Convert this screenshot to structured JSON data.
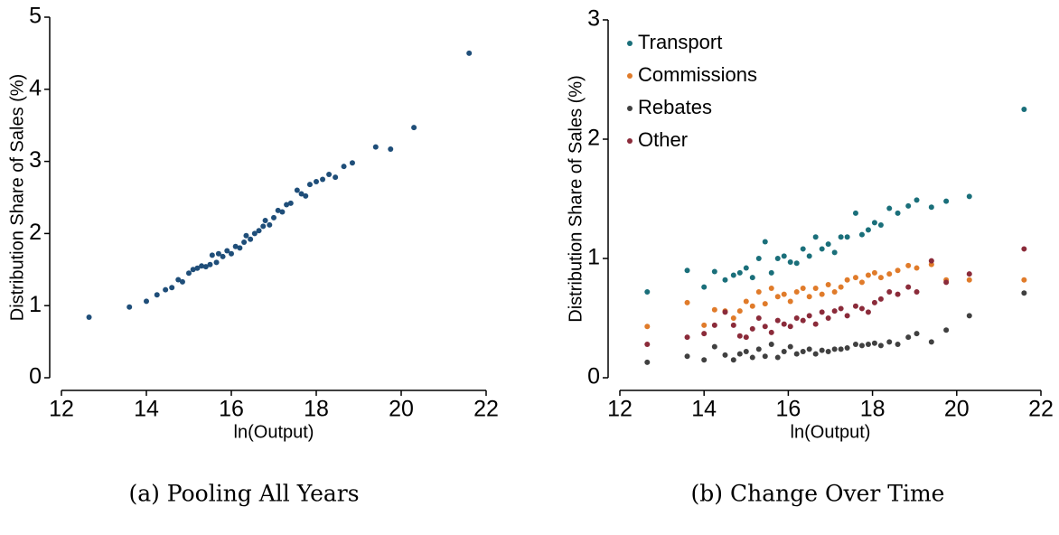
{
  "chart_data": [
    {
      "type": "scatter",
      "caption": "(a) Pooling All Years",
      "xlabel": "ln(Output)",
      "ylabel": "Distribution Share of Sales (%)",
      "color": "#1f4e79",
      "xlim": [
        12,
        22
      ],
      "xticks": [
        12,
        14,
        16,
        18,
        20,
        22
      ],
      "ylim": [
        0,
        5
      ],
      "yticks": [
        0,
        1,
        2,
        3,
        4,
        5
      ],
      "x": [
        12.65,
        13.6,
        14.0,
        14.25,
        14.45,
        14.6,
        14.75,
        14.85,
        15.0,
        15.1,
        15.2,
        15.3,
        15.4,
        15.5,
        15.55,
        15.65,
        15.7,
        15.8,
        15.9,
        16.0,
        16.1,
        16.2,
        16.3,
        16.35,
        16.45,
        16.55,
        16.65,
        16.75,
        16.8,
        16.9,
        17.0,
        17.1,
        17.2,
        17.3,
        17.4,
        17.55,
        17.65,
        17.75,
        17.85,
        18.0,
        18.15,
        18.3,
        18.45,
        18.65,
        18.85,
        19.4,
        19.75,
        20.3,
        21.6
      ],
      "values": [
        0.84,
        0.98,
        1.06,
        1.15,
        1.22,
        1.25,
        1.36,
        1.33,
        1.45,
        1.5,
        1.52,
        1.55,
        1.54,
        1.57,
        1.7,
        1.6,
        1.72,
        1.68,
        1.76,
        1.72,
        1.82,
        1.8,
        1.88,
        1.97,
        1.92,
        2.0,
        2.04,
        2.1,
        2.18,
        2.12,
        2.22,
        2.32,
        2.3,
        2.4,
        2.42,
        2.6,
        2.55,
        2.52,
        2.68,
        2.72,
        2.75,
        2.82,
        2.78,
        2.93,
        2.98,
        3.2,
        3.17,
        3.47,
        4.5
      ]
    },
    {
      "type": "scatter",
      "caption": "(b) Change Over Time",
      "xlabel": "ln(Output)",
      "ylabel": "Distribution Share of Sales (%)",
      "legend": "upper left",
      "xlim": [
        12,
        22
      ],
      "xticks": [
        12,
        14,
        16,
        18,
        20,
        22
      ],
      "ylim": [
        0,
        3
      ],
      "yticks": [
        0,
        1,
        2,
        3
      ],
      "x": [
        12.65,
        13.6,
        14.0,
        14.25,
        14.5,
        14.7,
        14.85,
        15.0,
        15.15,
        15.3,
        15.45,
        15.6,
        15.75,
        15.9,
        16.05,
        16.2,
        16.35,
        16.5,
        16.65,
        16.8,
        16.95,
        17.1,
        17.25,
        17.4,
        17.6,
        17.75,
        17.9,
        18.05,
        18.2,
        18.4,
        18.6,
        18.85,
        19.05,
        19.4,
        19.75,
        20.3,
        21.6
      ],
      "series": [
        {
          "name": "Transport",
          "color": "#1a6f7a",
          "values": [
            0.72,
            0.9,
            0.76,
            0.89,
            0.82,
            0.86,
            0.88,
            0.92,
            0.84,
            1.0,
            1.14,
            0.88,
            1.0,
            1.02,
            0.97,
            0.96,
            1.08,
            1.02,
            1.18,
            1.08,
            1.12,
            1.05,
            1.18,
            1.18,
            1.38,
            1.2,
            1.24,
            1.3,
            1.28,
            1.42,
            1.38,
            1.44,
            1.49,
            1.43,
            1.48,
            1.52,
            2.25
          ]
        },
        {
          "name": "Commissions",
          "color": "#e07b2a",
          "values": [
            0.43,
            0.63,
            0.44,
            0.57,
            0.56,
            0.5,
            0.56,
            0.64,
            0.6,
            0.72,
            0.62,
            0.75,
            0.68,
            0.7,
            0.64,
            0.72,
            0.75,
            0.68,
            0.75,
            0.7,
            0.78,
            0.72,
            0.76,
            0.82,
            0.84,
            0.8,
            0.86,
            0.88,
            0.84,
            0.87,
            0.9,
            0.94,
            0.92,
            0.95,
            0.82,
            0.82,
            0.82
          ]
        },
        {
          "name": "Rebates",
          "color": "#404040",
          "values": [
            0.13,
            0.18,
            0.15,
            0.26,
            0.19,
            0.15,
            0.2,
            0.22,
            0.17,
            0.24,
            0.18,
            0.28,
            0.17,
            0.22,
            0.26,
            0.2,
            0.22,
            0.24,
            0.2,
            0.23,
            0.22,
            0.24,
            0.24,
            0.25,
            0.28,
            0.27,
            0.28,
            0.29,
            0.27,
            0.3,
            0.28,
            0.34,
            0.37,
            0.3,
            0.4,
            0.52,
            0.71
          ]
        },
        {
          "name": "Other",
          "color": "#8b2b3a",
          "values": [
            0.28,
            0.34,
            0.37,
            0.44,
            0.55,
            0.44,
            0.35,
            0.34,
            0.41,
            0.5,
            0.43,
            0.38,
            0.48,
            0.45,
            0.43,
            0.5,
            0.48,
            0.52,
            0.45,
            0.55,
            0.5,
            0.56,
            0.58,
            0.52,
            0.6,
            0.58,
            0.55,
            0.63,
            0.66,
            0.72,
            0.7,
            0.76,
            0.72,
            0.98,
            0.8,
            0.87,
            1.08
          ]
        }
      ]
    }
  ]
}
